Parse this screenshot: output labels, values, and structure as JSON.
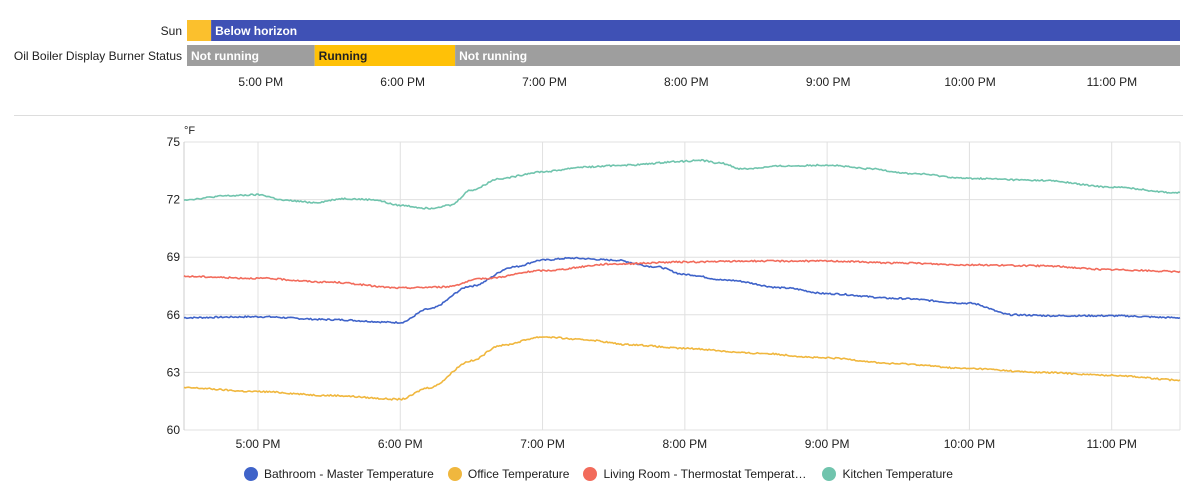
{
  "colors": {
    "sun_day": "#fbc02d",
    "sun_night": "#3f51b5",
    "not_running": "#9e9e9e",
    "running": "#ffc107",
    "grid": "#e0e0e0",
    "divider": "#dddddd"
  },
  "timeline": {
    "x_range_hours": [
      16.48,
      23.48
    ],
    "rows": [
      {
        "label": "Sun",
        "segments": [
          {
            "start": 16.48,
            "end": 16.65,
            "text": "",
            "color": "#fbc02d"
          },
          {
            "start": 16.65,
            "end": 23.48,
            "text": "Below horizon",
            "color": "#3f51b5"
          }
        ]
      },
      {
        "label": "Oil Boiler Display Burner Status",
        "segments": [
          {
            "start": 16.48,
            "end": 17.38,
            "text": "Not running",
            "color": "#9e9e9e"
          },
          {
            "start": 17.38,
            "end": 18.37,
            "text": "Running",
            "color": "#ffc107",
            "text_color": "#212121"
          },
          {
            "start": 18.37,
            "end": 23.48,
            "text": "Not running",
            "color": "#9e9e9e"
          }
        ]
      }
    ],
    "tick_hours": [
      17,
      18,
      19,
      20,
      21,
      22,
      23
    ],
    "tick_labels": [
      "5:00 PM",
      "6:00 PM",
      "7:00 PM",
      "8:00 PM",
      "9:00 PM",
      "10:00 PM",
      "11:00 PM"
    ]
  },
  "chart_data": {
    "type": "line",
    "unit": "°F",
    "xlim": [
      16.48,
      23.48
    ],
    "ylim": [
      60,
      75
    ],
    "y_ticks": [
      60,
      63,
      66,
      69,
      72,
      75
    ],
    "x_ticks": [
      17,
      18,
      19,
      20,
      21,
      22,
      23
    ],
    "x_tick_labels": [
      "5:00 PM",
      "6:00 PM",
      "7:00 PM",
      "8:00 PM",
      "9:00 PM",
      "10:00 PM",
      "11:00 PM"
    ],
    "series": [
      {
        "name": "Bathroom - Master Temperature",
        "color": "#3f63c9",
        "x": [
          16.48,
          17.0,
          17.5,
          18.0,
          18.2,
          18.5,
          18.8,
          19.0,
          19.2,
          19.5,
          19.8,
          20.0,
          20.3,
          20.7,
          21.0,
          21.5,
          22.0,
          22.3,
          22.6,
          23.0,
          23.48
        ],
        "y": [
          65.85,
          65.9,
          65.75,
          65.6,
          66.3,
          67.5,
          68.5,
          68.85,
          68.95,
          68.85,
          68.5,
          68.1,
          67.8,
          67.4,
          67.1,
          66.85,
          66.6,
          66.0,
          65.95,
          65.95,
          65.85
        ]
      },
      {
        "name": "Office Temperature",
        "color": "#f0b73e",
        "x": [
          16.48,
          17.0,
          17.5,
          18.0,
          18.2,
          18.5,
          18.7,
          19.0,
          19.3,
          19.6,
          20.0,
          20.5,
          21.0,
          21.5,
          22.0,
          22.5,
          23.0,
          23.48
        ],
        "y": [
          62.2,
          62.0,
          61.8,
          61.6,
          62.2,
          63.6,
          64.4,
          64.85,
          64.7,
          64.45,
          64.25,
          64.0,
          63.75,
          63.45,
          63.2,
          63.0,
          62.85,
          62.6
        ]
      },
      {
        "name": "Living Room - Thermostat Temperature",
        "color": "#f26b5b",
        "x": [
          16.48,
          17.0,
          17.5,
          18.0,
          18.3,
          18.6,
          19.0,
          19.5,
          20.0,
          20.5,
          21.0,
          21.5,
          22.0,
          22.5,
          23.0,
          23.48
        ],
        "y": [
          68.0,
          67.9,
          67.7,
          67.4,
          67.45,
          67.9,
          68.3,
          68.65,
          68.75,
          68.8,
          68.8,
          68.7,
          68.6,
          68.55,
          68.35,
          68.25
        ]
      },
      {
        "name": "Kitchen Temperature",
        "color": "#70c4ad",
        "x": [
          16.48,
          16.8,
          17.0,
          17.2,
          17.4,
          17.6,
          17.8,
          18.0,
          18.2,
          18.35,
          18.5,
          18.7,
          19.0,
          19.3,
          19.6,
          20.0,
          20.1,
          20.25,
          20.4,
          20.7,
          21.0,
          21.3,
          21.6,
          22.0,
          22.5,
          23.0,
          23.48
        ],
        "y": [
          72.0,
          72.2,
          72.25,
          71.95,
          71.85,
          72.05,
          72.0,
          71.7,
          71.55,
          71.7,
          72.5,
          73.1,
          73.45,
          73.7,
          73.8,
          74.0,
          74.05,
          73.9,
          73.6,
          73.75,
          73.8,
          73.6,
          73.35,
          73.1,
          73.0,
          72.65,
          72.35
        ]
      }
    ]
  },
  "legend": [
    {
      "label": "Bathroom - Master Temperature",
      "color": "#3f63c9"
    },
    {
      "label": "Office Temperature",
      "color": "#f0b73e"
    },
    {
      "label": "Living Room - Thermostat Temperature",
      "color": "#f26b5b"
    },
    {
      "label": "Kitchen Temperature",
      "color": "#70c4ad"
    }
  ]
}
